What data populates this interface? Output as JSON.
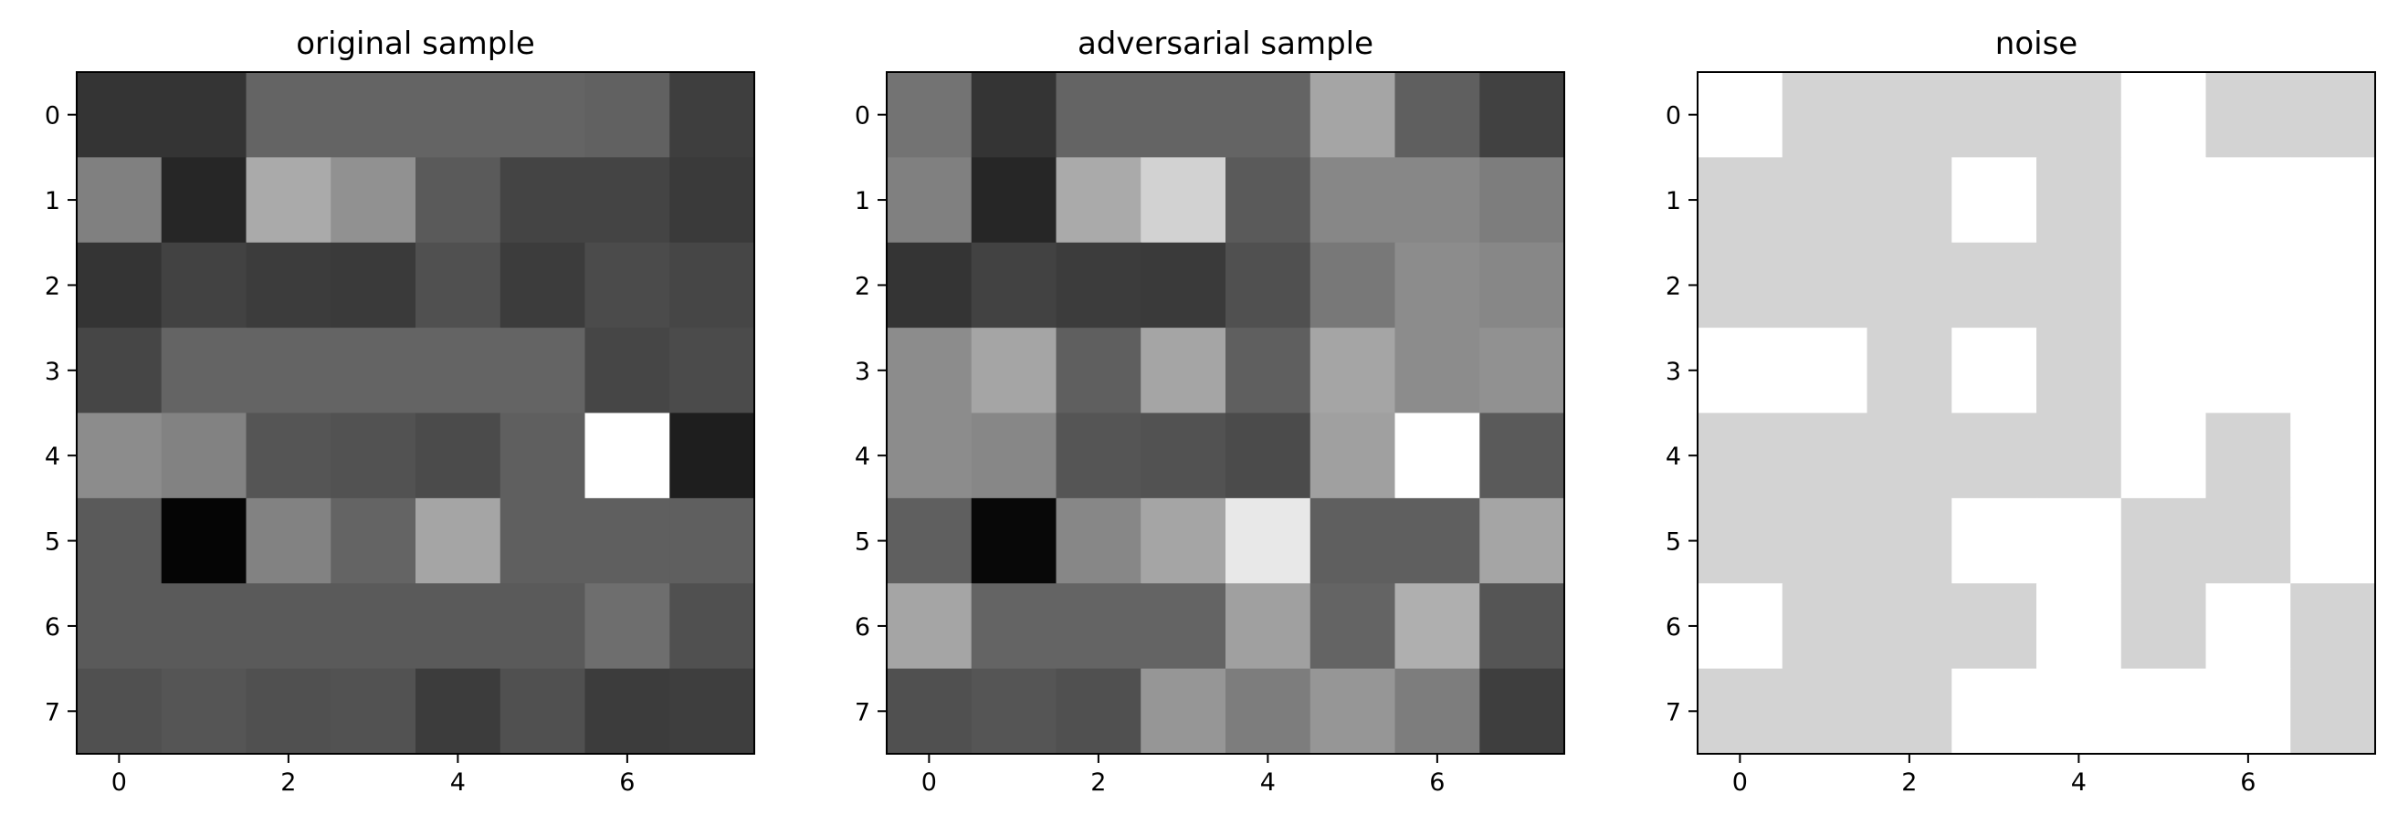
{
  "chart_data": [
    {
      "type": "heatmap",
      "title": "original sample",
      "cmap": "gray",
      "values": [
        [
          52,
          52,
          100,
          100,
          100,
          100,
          97,
          62
        ],
        [
          128,
          38,
          170,
          145,
          90,
          68,
          68,
          58
        ],
        [
          52,
          66,
          60,
          58,
          80,
          60,
          75,
          70
        ],
        [
          70,
          100,
          100,
          100,
          100,
          100,
          70,
          75
        ],
        [
          140,
          130,
          85,
          82,
          75,
          95,
          255,
          30
        ],
        [
          90,
          5,
          130,
          100,
          165,
          95,
          95,
          95
        ],
        [
          90,
          90,
          90,
          90,
          90,
          90,
          110,
          80
        ],
        [
          80,
          85,
          80,
          82,
          60,
          80,
          60,
          62
        ]
      ],
      "xlim": [
        -0.5,
        7.5
      ],
      "ylim": [
        7.5,
        -0.5
      ],
      "xticks": [
        0,
        2,
        4,
        6
      ],
      "yticks": [
        0,
        1,
        2,
        3,
        4,
        5,
        6,
        7
      ]
    },
    {
      "type": "heatmap",
      "title": "adversarial sample",
      "cmap": "gray",
      "values": [
        [
          115,
          52,
          100,
          100,
          100,
          165,
          95,
          65
        ],
        [
          128,
          38,
          170,
          210,
          90,
          135,
          135,
          125
        ],
        [
          52,
          66,
          60,
          58,
          80,
          120,
          140,
          135
        ],
        [
          140,
          165,
          95,
          165,
          95,
          165,
          140,
          145
        ],
        [
          140,
          135,
          85,
          82,
          75,
          160,
          255,
          90
        ],
        [
          95,
          8,
          135,
          165,
          232,
          95,
          95,
          165
        ],
        [
          165,
          100,
          100,
          100,
          160,
          100,
          175,
          85
        ],
        [
          80,
          85,
          80,
          150,
          125,
          150,
          125,
          62
        ]
      ],
      "xlim": [
        -0.5,
        7.5
      ],
      "ylim": [
        7.5,
        -0.5
      ],
      "xticks": [
        0,
        2,
        4,
        6
      ],
      "yticks": [
        0,
        1,
        2,
        3,
        4,
        5,
        6,
        7
      ]
    },
    {
      "type": "heatmap",
      "title": "noise",
      "cmap": "gray",
      "values": [
        [
          255,
          211,
          211,
          211,
          211,
          255,
          211,
          211
        ],
        [
          211,
          211,
          211,
          255,
          211,
          255,
          255,
          255
        ],
        [
          211,
          211,
          211,
          211,
          211,
          255,
          255,
          255
        ],
        [
          255,
          255,
          211,
          255,
          211,
          255,
          255,
          255
        ],
        [
          211,
          211,
          211,
          211,
          211,
          255,
          211,
          255
        ],
        [
          211,
          211,
          211,
          255,
          255,
          211,
          211,
          255
        ],
        [
          255,
          211,
          211,
          211,
          255,
          211,
          255,
          211
        ],
        [
          211,
          211,
          211,
          255,
          255,
          255,
          255,
          211
        ]
      ],
      "xlim": [
        -0.5,
        7.5
      ],
      "ylim": [
        7.5,
        -0.5
      ],
      "xticks": [
        0,
        2,
        4,
        6
      ],
      "yticks": [
        0,
        1,
        2,
        3,
        4,
        5,
        6,
        7
      ]
    }
  ]
}
